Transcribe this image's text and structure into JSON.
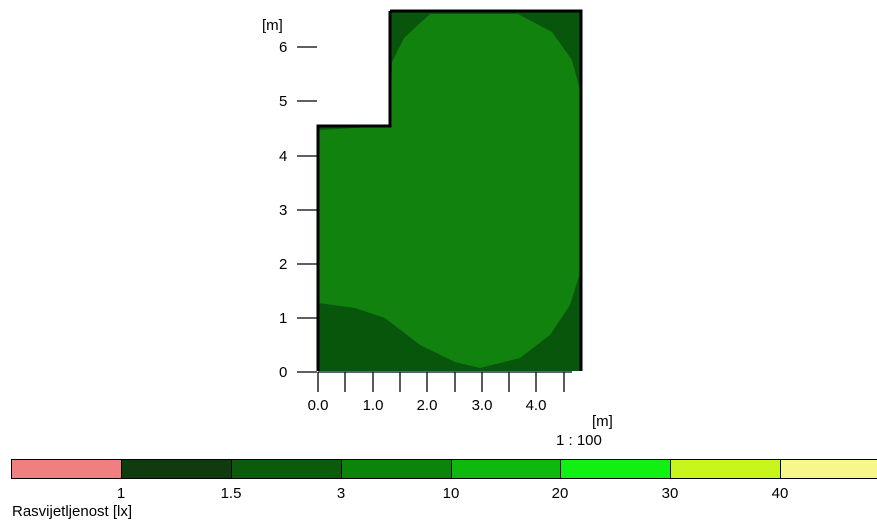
{
  "plan": {
    "y_unit": "[m]",
    "x_unit": "[m]",
    "scale": "1 : 100",
    "y_ticks": [
      "0",
      "1",
      "2",
      "3",
      "4",
      "5",
      "6"
    ],
    "x_ticks": [
      "0.0",
      "1.0",
      "2.0",
      "3.0",
      "4.0"
    ]
  },
  "legend": {
    "title": "Rasvijetljenost [lx]",
    "ticks": [
      "1",
      "1.5",
      "3",
      "10",
      "20",
      "30",
      "40"
    ],
    "colors": [
      "#f08080",
      "#0f3b0f",
      "#0c5a0c",
      "#0a850a",
      "#0cb90c",
      "#12f012",
      "#c8f51e",
      "#f8f88a"
    ]
  },
  "zone_colors": {
    "level_1_5_to_3": "#08550c",
    "level_3_to_10": "#12820f"
  }
}
